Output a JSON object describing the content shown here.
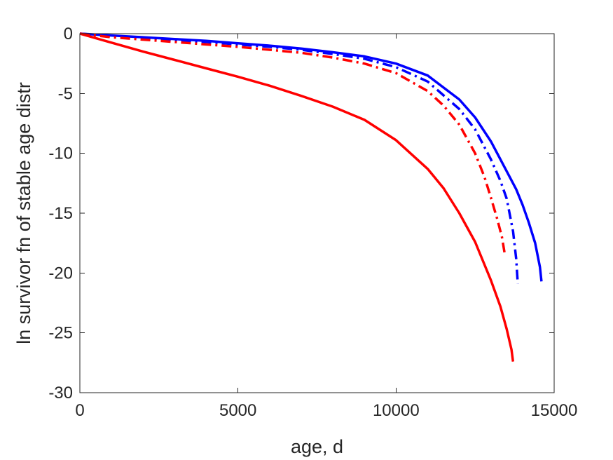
{
  "chart_data": {
    "type": "line",
    "title": "",
    "xlabel": "age, d",
    "ylabel": "ln survivor fn of stable age distr",
    "xlim": [
      0,
      15000
    ],
    "ylim": [
      -30,
      0
    ],
    "xticks": [
      0,
      5000,
      10000,
      15000
    ],
    "yticks": [
      0,
      -5,
      -10,
      -15,
      -20,
      -25,
      -30
    ],
    "grid": false,
    "legend": "none",
    "series": [
      {
        "color": "#0000ff",
        "style": "solid",
        "x": [
          0,
          1000,
          2000,
          3000,
          4000,
          5000,
          6000,
          7000,
          8000,
          9000,
          10000,
          11000,
          12000,
          12500,
          13000,
          13500,
          13800,
          14000,
          14200,
          14400,
          14550,
          14600
        ],
        "y": [
          0,
          -0.15,
          -0.3,
          -0.45,
          -0.6,
          -0.8,
          -1.0,
          -1.25,
          -1.55,
          -1.9,
          -2.5,
          -3.5,
          -5.5,
          -7.0,
          -9.0,
          -11.5,
          -13.0,
          -14.3,
          -15.8,
          -17.5,
          -19.5,
          -20.7
        ]
      },
      {
        "color": "#0000ff",
        "style": "dashdot",
        "x": [
          0,
          1000,
          2000,
          3000,
          4000,
          5000,
          6000,
          7000,
          8000,
          9000,
          10000,
          11000,
          12000,
          12500,
          13000,
          13300,
          13500,
          13700,
          13800,
          13850
        ],
        "y": [
          0,
          -0.2,
          -0.35,
          -0.55,
          -0.7,
          -0.9,
          -1.1,
          -1.35,
          -1.7,
          -2.1,
          -2.8,
          -4.0,
          -6.3,
          -8.0,
          -10.5,
          -12.3,
          -13.8,
          -16.5,
          -18.8,
          -20.9
        ]
      },
      {
        "color": "#ff0000",
        "style": "dashdot",
        "x": [
          0,
          1000,
          2000,
          3000,
          4000,
          5000,
          6000,
          7000,
          8000,
          9000,
          10000,
          11000,
          11500,
          12000,
          12500,
          12800,
          13000,
          13200,
          13350,
          13450
        ],
        "y": [
          0,
          -0.3,
          -0.5,
          -0.7,
          -0.9,
          -1.1,
          -1.35,
          -1.6,
          -2.0,
          -2.5,
          -3.3,
          -4.8,
          -6.0,
          -7.6,
          -10.0,
          -12.0,
          -13.7,
          -15.5,
          -17.0,
          -18.6
        ]
      },
      {
        "color": "#ff0000",
        "style": "solid",
        "x": [
          0,
          1000,
          2000,
          3000,
          4000,
          5000,
          6000,
          7000,
          8000,
          9000,
          10000,
          11000,
          11500,
          12000,
          12500,
          13000,
          13300,
          13500,
          13650,
          13700
        ],
        "y": [
          0,
          -0.75,
          -1.5,
          -2.2,
          -2.9,
          -3.6,
          -4.35,
          -5.2,
          -6.1,
          -7.2,
          -8.9,
          -11.3,
          -12.9,
          -15.0,
          -17.4,
          -20.6,
          -22.8,
          -24.7,
          -26.4,
          -27.4
        ]
      }
    ]
  }
}
